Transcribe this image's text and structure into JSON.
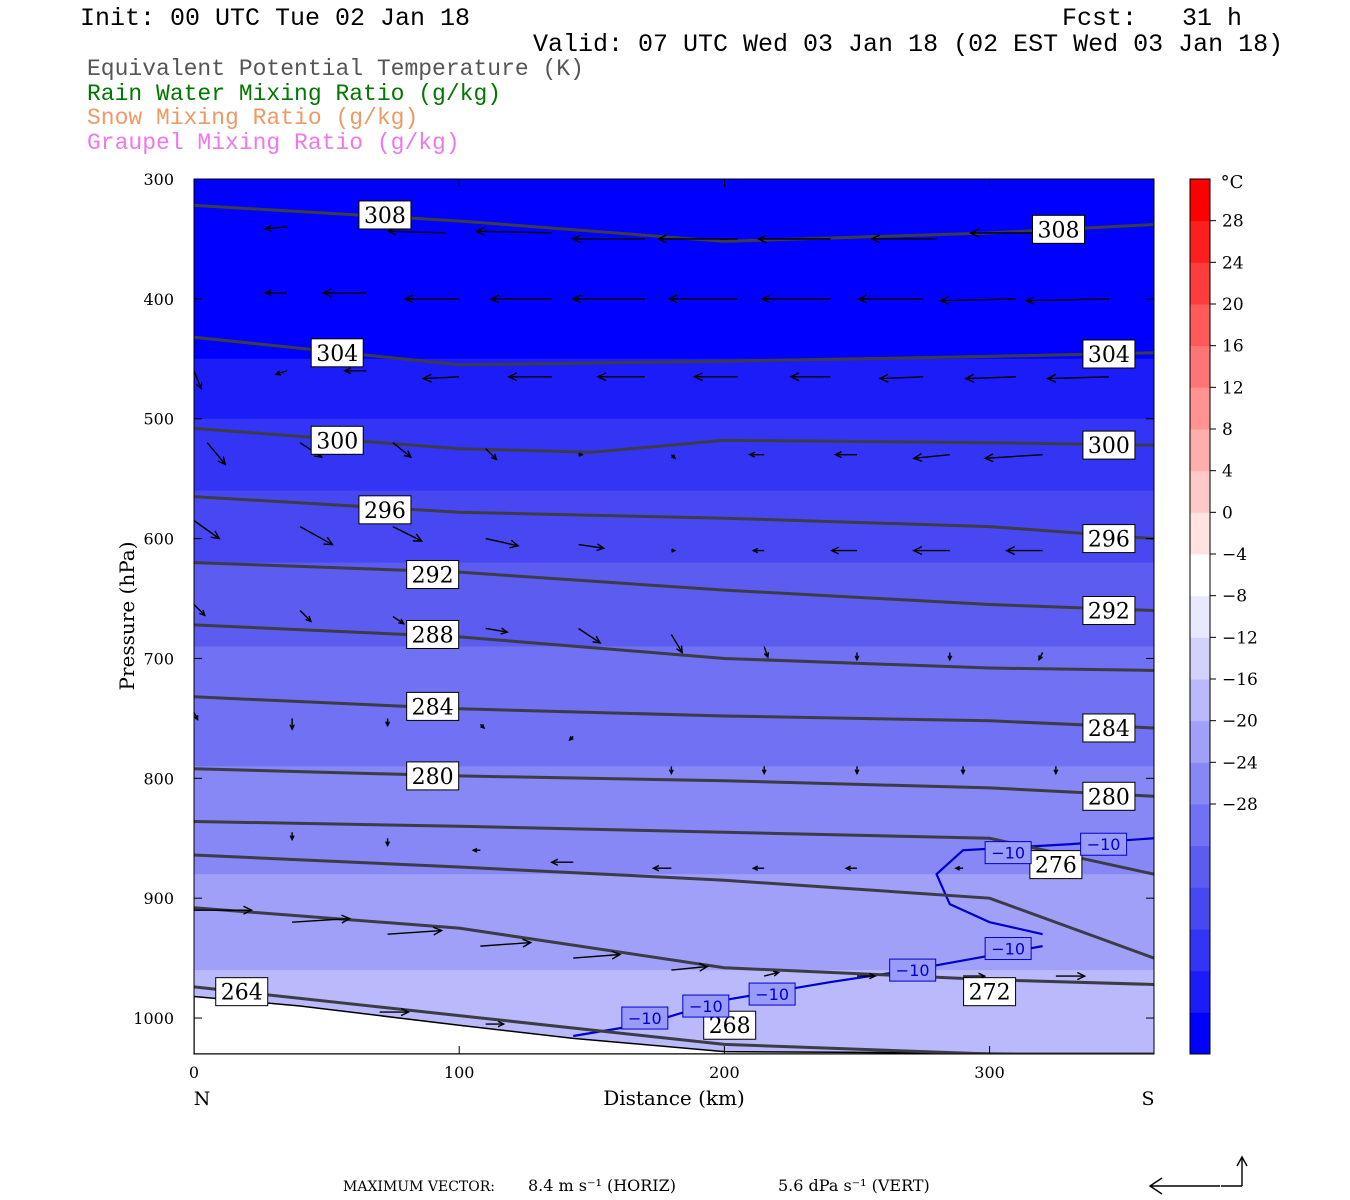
{
  "header": {
    "init": "Init: 00 UTC Tue 02 Jan 18",
    "fcst": "Fcst:   31 h",
    "valid": "Valid: 07 UTC Wed 03 Jan 18 (02 EST Wed 03 Jan 18)"
  },
  "legend": [
    {
      "label": "Equivalent Potential Temperature (K)",
      "color": "#555555"
    },
    {
      "label": "Rain Water Mixing Ratio (g/kg)",
      "color": "#007700"
    },
    {
      "label": "Snow Mixing Ratio (g/kg)",
      "color": "#ee9966"
    },
    {
      "label": "Graupel Mixing Ratio (g/kg)",
      "color": "#ee77ee"
    }
  ],
  "footer": {
    "label": "MAXIMUM VECTOR:",
    "horiz": "8.4 m s⁻¹ (HORIZ)",
    "vert": "5.6 dPa s⁻¹ (VERT)"
  },
  "chart_data": {
    "type": "contour",
    "xlabel": "Distance (km)",
    "ylabel": "Pressure (hPa)",
    "xlim": [
      0,
      362
    ],
    "ylim": [
      1030,
      300
    ],
    "x_ticks": [
      0,
      100,
      200,
      300
    ],
    "y_ticks": [
      300,
      400,
      500,
      600,
      700,
      800,
      900,
      1000
    ],
    "x_end_labels": {
      "left": "N",
      "right": "S"
    },
    "colorbar": {
      "unit": "°C",
      "levels": [
        -32,
        -28,
        -24,
        -20,
        -16,
        -12,
        -8,
        -4,
        0,
        4,
        8,
        12,
        16,
        20,
        24,
        28,
        32
      ],
      "tick_labels": [
        "28",
        "24",
        "20",
        "16",
        "12",
        "8",
        "4",
        "0",
        "−4",
        "−8",
        "−12",
        "−16",
        "−20",
        "−24",
        "−28"
      ],
      "colors": [
        "#0000ff",
        "#1c1cf9",
        "#3434f4",
        "#4848f2",
        "#5c5cf1",
        "#7171f3",
        "#8787f6",
        "#a0a0f9",
        "#b9b9fb",
        "#d2d2fc",
        "#e8e8fe",
        "#ffffff",
        "#ffe3e3",
        "#ffc9c9",
        "#ffaeae",
        "#ff9292",
        "#ff7575",
        "#ff5a5a",
        "#ff3c3c",
        "#ff1e1e",
        "#ff0000"
      ]
    },
    "temperature_bands": [
      {
        "p_top": 300,
        "p_bottom": 450,
        "color": "#0000ff"
      },
      {
        "p_top": 450,
        "p_bottom": 500,
        "color": "#1c1cf9"
      },
      {
        "p_top": 500,
        "p_bottom": 560,
        "color": "#3434f4"
      },
      {
        "p_top": 560,
        "p_bottom": 620,
        "color": "#4848f2"
      },
      {
        "p_top": 620,
        "p_bottom": 690,
        "color": "#5c5cf1"
      },
      {
        "p_top": 690,
        "p_bottom": 790,
        "color": "#7171f3"
      },
      {
        "p_top": 790,
        "p_bottom": 880,
        "color": "#8787f6"
      },
      {
        "p_top": 880,
        "p_bottom": 960,
        "color": "#a0a0f9"
      },
      {
        "p_top": 960,
        "p_bottom": 1030,
        "color": "#b9b9fb"
      }
    ],
    "theta_e_contours": [
      {
        "level": 308,
        "x": [
          0,
          100,
          200,
          300,
          362
        ],
        "p": [
          322,
          335,
          352,
          345,
          338
        ]
      },
      {
        "level": 304,
        "x": [
          0,
          100,
          200,
          300,
          362
        ],
        "p": [
          432,
          455,
          452,
          448,
          445
        ]
      },
      {
        "level": 300,
        "x": [
          0,
          100,
          150,
          200,
          300,
          362
        ],
        "p": [
          508,
          525,
          528,
          518,
          520,
          522
        ]
      },
      {
        "level": 296,
        "x": [
          0,
          100,
          200,
          300,
          362
        ],
        "p": [
          565,
          578,
          583,
          590,
          600
        ]
      },
      {
        "level": 292,
        "x": [
          0,
          100,
          200,
          300,
          362
        ],
        "p": [
          620,
          628,
          643,
          655,
          660
        ]
      },
      {
        "level": 288,
        "x": [
          0,
          100,
          200,
          300,
          362
        ],
        "p": [
          672,
          682,
          700,
          708,
          710
        ]
      },
      {
        "level": 284,
        "x": [
          0,
          100,
          200,
          300,
          362
        ],
        "p": [
          732,
          742,
          748,
          752,
          758
        ]
      },
      {
        "level": 280,
        "x": [
          0,
          100,
          200,
          300,
          362
        ],
        "p": [
          792,
          798,
          802,
          808,
          815
        ]
      },
      {
        "level": 276,
        "x": [
          0,
          100,
          200,
          300,
          362
        ],
        "p": [
          836,
          840,
          845,
          850,
          880
        ]
      },
      {
        "level": 272,
        "x": [
          0,
          100,
          200,
          300,
          362
        ],
        "p": [
          864,
          874,
          885,
          900,
          950
        ]
      },
      {
        "level": 268,
        "x": [
          0,
          100,
          200,
          300,
          362
        ],
        "p": [
          908,
          925,
          958,
          968,
          972
        ]
      },
      {
        "level": 264,
        "x": [
          0,
          100,
          200,
          300,
          362
        ],
        "p": [
          974,
          998,
          1022,
          1030,
          1030
        ]
      }
    ],
    "contour_labels": [
      {
        "text": "308",
        "x": 72,
        "p": 330
      },
      {
        "text": "308",
        "x": 326,
        "p": 342
      },
      {
        "text": "304",
        "x": 54,
        "p": 445
      },
      {
        "text": "304",
        "x": 345,
        "p": 446
      },
      {
        "text": "300",
        "x": 54,
        "p": 518
      },
      {
        "text": "300",
        "x": 345,
        "p": 522
      },
      {
        "text": "296",
        "x": 72,
        "p": 576
      },
      {
        "text": "296",
        "x": 345,
        "p": 600
      },
      {
        "text": "292",
        "x": 90,
        "p": 630
      },
      {
        "text": "292",
        "x": 345,
        "p": 660
      },
      {
        "text": "288",
        "x": 90,
        "p": 680
      },
      {
        "text": "284",
        "x": 90,
        "p": 740
      },
      {
        "text": "284",
        "x": 345,
        "p": 758
      },
      {
        "text": "280",
        "x": 90,
        "p": 798
      },
      {
        "text": "280",
        "x": 345,
        "p": 815
      },
      {
        "text": "276",
        "x": 325,
        "p": 872
      },
      {
        "text": "272",
        "x": 300,
        "p": 978
      },
      {
        "text": "268",
        "x": 202,
        "p": 1006
      },
      {
        "text": "264",
        "x": 18,
        "p": 978
      }
    ],
    "isotherm_minus10": {
      "color": "#0000cc",
      "x": [
        143,
        170,
        200,
        240,
        270,
        300,
        320
      ],
      "p": [
        1015,
        1005,
        985,
        970,
        960,
        948,
        940
      ],
      "x2": [
        320,
        300,
        285,
        280,
        290,
        330,
        362
      ],
      "p2": [
        930,
        920,
        905,
        880,
        860,
        855,
        850
      ],
      "labels": [
        {
          "text": "−10",
          "x": 170,
          "p": 1000
        },
        {
          "text": "−10",
          "x": 193,
          "p": 990
        },
        {
          "text": "−10",
          "x": 218,
          "p": 980
        },
        {
          "text": "−10",
          "x": 271,
          "p": 960
        },
        {
          "text": "−10",
          "x": 307,
          "p": 942
        },
        {
          "text": "−10",
          "x": 307,
          "p": 862
        },
        {
          "text": "−10",
          "x": 343,
          "p": 855
        }
      ]
    },
    "wind_vectors": [
      {
        "x": 35,
        "p": 340,
        "u": -0.6,
        "v": 0.05
      },
      {
        "x": 95,
        "p": 345,
        "u": -1.6,
        "v": -0.05
      },
      {
        "x": 135,
        "p": 345,
        "u": -2.1,
        "v": -0.05
      },
      {
        "x": 170,
        "p": 350,
        "u": -2.0,
        "v": 0.0
      },
      {
        "x": 205,
        "p": 350,
        "u": -2.2,
        "v": 0.0
      },
      {
        "x": 240,
        "p": 350,
        "u": -2.0,
        "v": 0.0
      },
      {
        "x": 280,
        "p": 350,
        "u": -1.8,
        "v": 0.0
      },
      {
        "x": 320,
        "p": 345,
        "u": -2.0,
        "v": 0.0
      },
      {
        "x": 35,
        "p": 395,
        "u": -0.6,
        "v": 0.0
      },
      {
        "x": 65,
        "p": 395,
        "u": -1.2,
        "v": 0.0
      },
      {
        "x": 100,
        "p": 400,
        "u": -1.5,
        "v": 0.0
      },
      {
        "x": 135,
        "p": 400,
        "u": -1.7,
        "v": 0.0
      },
      {
        "x": 170,
        "p": 400,
        "u": -2.0,
        "v": 0.0
      },
      {
        "x": 205,
        "p": 400,
        "u": -1.9,
        "v": 0.0
      },
      {
        "x": 240,
        "p": 400,
        "u": -1.9,
        "v": 0.0
      },
      {
        "x": 275,
        "p": 400,
        "u": -1.8,
        "v": 0.0
      },
      {
        "x": 310,
        "p": 400,
        "u": -2.1,
        "v": 0.05
      },
      {
        "x": 345,
        "p": 400,
        "u": -2.3,
        "v": 0.05
      },
      {
        "x": 0,
        "p": 460,
        "u": 0.2,
        "v": 0.5
      },
      {
        "x": 35,
        "p": 460,
        "u": -0.3,
        "v": 0.1
      },
      {
        "x": 65,
        "p": 460,
        "u": -0.6,
        "v": 0.0
      },
      {
        "x": 100,
        "p": 465,
        "u": -1.0,
        "v": 0.05
      },
      {
        "x": 135,
        "p": 465,
        "u": -1.2,
        "v": 0.0
      },
      {
        "x": 170,
        "p": 465,
        "u": -1.3,
        "v": 0.0
      },
      {
        "x": 205,
        "p": 465,
        "u": -1.2,
        "v": 0.0
      },
      {
        "x": 240,
        "p": 465,
        "u": -1.1,
        "v": 0.0
      },
      {
        "x": 275,
        "p": 465,
        "u": -1.2,
        "v": 0.05
      },
      {
        "x": 310,
        "p": 465,
        "u": -1.4,
        "v": 0.05
      },
      {
        "x": 345,
        "p": 465,
        "u": -1.7,
        "v": 0.05
      },
      {
        "x": 5,
        "p": 520,
        "u": 0.5,
        "v": 0.6
      },
      {
        "x": 40,
        "p": 520,
        "u": 0.6,
        "v": 0.4
      },
      {
        "x": 75,
        "p": 520,
        "u": 0.5,
        "v": 0.4
      },
      {
        "x": 110,
        "p": 525,
        "u": 0.3,
        "v": 0.3
      },
      {
        "x": 145,
        "p": 530,
        "u": 0.1,
        "v": 0.0
      },
      {
        "x": 180,
        "p": 530,
        "u": 0.1,
        "v": 0.1
      },
      {
        "x": 215,
        "p": 530,
        "u": -0.4,
        "v": 0.0
      },
      {
        "x": 250,
        "p": 530,
        "u": -0.6,
        "v": 0.0
      },
      {
        "x": 285,
        "p": 530,
        "u": -1.0,
        "v": 0.1
      },
      {
        "x": 320,
        "p": 530,
        "u": -1.6,
        "v": 0.1
      },
      {
        "x": 0,
        "p": 585,
        "u": 0.7,
        "v": 0.5
      },
      {
        "x": 40,
        "p": 590,
        "u": 0.9,
        "v": 0.5
      },
      {
        "x": 75,
        "p": 590,
        "u": 0.8,
        "v": 0.4
      },
      {
        "x": 110,
        "p": 600,
        "u": 0.9,
        "v": 0.2
      },
      {
        "x": 145,
        "p": 605,
        "u": 0.7,
        "v": 0.1
      },
      {
        "x": 180,
        "p": 610,
        "u": 0.1,
        "v": 0.0
      },
      {
        "x": 215,
        "p": 610,
        "u": -0.3,
        "v": 0.0
      },
      {
        "x": 250,
        "p": 610,
        "u": -0.7,
        "v": 0.0
      },
      {
        "x": 285,
        "p": 610,
        "u": -1.0,
        "v": 0.0
      },
      {
        "x": 320,
        "p": 610,
        "u": -1.0,
        "v": 0.0
      },
      {
        "x": 0,
        "p": 655,
        "u": 0.3,
        "v": 0.3
      },
      {
        "x": 40,
        "p": 660,
        "u": 0.3,
        "v": 0.3
      },
      {
        "x": 75,
        "p": 665,
        "u": 0.3,
        "v": 0.2
      },
      {
        "x": 110,
        "p": 675,
        "u": 0.6,
        "v": 0.1
      },
      {
        "x": 145,
        "p": 675,
        "u": 0.6,
        "v": 0.4
      },
      {
        "x": 180,
        "p": 680,
        "u": 0.3,
        "v": 0.5
      },
      {
        "x": 215,
        "p": 690,
        "u": 0.1,
        "v": 0.3
      },
      {
        "x": 250,
        "p": 695,
        "u": 0.0,
        "v": 0.2
      },
      {
        "x": 285,
        "p": 695,
        "u": 0.0,
        "v": 0.2
      },
      {
        "x": 320,
        "p": 695,
        "u": -0.1,
        "v": 0.2
      },
      {
        "x": 0,
        "p": 745,
        "u": 0.1,
        "v": 0.2
      },
      {
        "x": 37,
        "p": 750,
        "u": 0.0,
        "v": 0.3
      },
      {
        "x": 73,
        "p": 750,
        "u": 0.0,
        "v": 0.2
      },
      {
        "x": 108,
        "p": 755,
        "u": 0.1,
        "v": 0.1
      },
      {
        "x": 143,
        "p": 765,
        "u": -0.1,
        "v": 0.1
      },
      {
        "x": 180,
        "p": 790,
        "u": 0.0,
        "v": 0.2
      },
      {
        "x": 215,
        "p": 790,
        "u": 0.0,
        "v": 0.2
      },
      {
        "x": 250,
        "p": 790,
        "u": 0.0,
        "v": 0.2
      },
      {
        "x": 290,
        "p": 790,
        "u": 0.0,
        "v": 0.2
      },
      {
        "x": 325,
        "p": 790,
        "u": 0.0,
        "v": 0.2
      },
      {
        "x": 37,
        "p": 845,
        "u": 0.0,
        "v": 0.2
      },
      {
        "x": 73,
        "p": 850,
        "u": 0.0,
        "v": 0.2
      },
      {
        "x": 108,
        "p": 860,
        "u": -0.2,
        "v": 0.0
      },
      {
        "x": 143,
        "p": 870,
        "u": -0.6,
        "v": 0.0
      },
      {
        "x": 180,
        "p": 875,
        "u": -0.5,
        "v": 0.0
      },
      {
        "x": 215,
        "p": 875,
        "u": -0.3,
        "v": 0.0
      },
      {
        "x": 250,
        "p": 875,
        "u": -0.3,
        "v": 0.0
      },
      {
        "x": 290,
        "p": 875,
        "u": -0.2,
        "v": 0.0
      },
      {
        "x": 0,
        "p": 910,
        "u": 1.6,
        "v": 0.0
      },
      {
        "x": 37,
        "p": 920,
        "u": 1.6,
        "v": -0.1
      },
      {
        "x": 73,
        "p": 930,
        "u": 1.5,
        "v": -0.1
      },
      {
        "x": 108,
        "p": 940,
        "u": 1.4,
        "v": -0.1
      },
      {
        "x": 143,
        "p": 950,
        "u": 1.3,
        "v": -0.1
      },
      {
        "x": 180,
        "p": 960,
        "u": 1.0,
        "v": -0.1
      },
      {
        "x": 215,
        "p": 965,
        "u": 0.4,
        "v": -0.1
      },
      {
        "x": 250,
        "p": 965,
        "u": 0.5,
        "v": 0.0
      },
      {
        "x": 290,
        "p": 965,
        "u": 0.6,
        "v": 0.0
      },
      {
        "x": 325,
        "p": 965,
        "u": 0.8,
        "v": 0.0
      },
      {
        "x": 20,
        "p": 985,
        "u": 0.5,
        "v": 0.0
      },
      {
        "x": 70,
        "p": 995,
        "u": 0.8,
        "v": 0.0
      },
      {
        "x": 110,
        "p": 1005,
        "u": 0.5,
        "v": 0.0
      }
    ]
  }
}
